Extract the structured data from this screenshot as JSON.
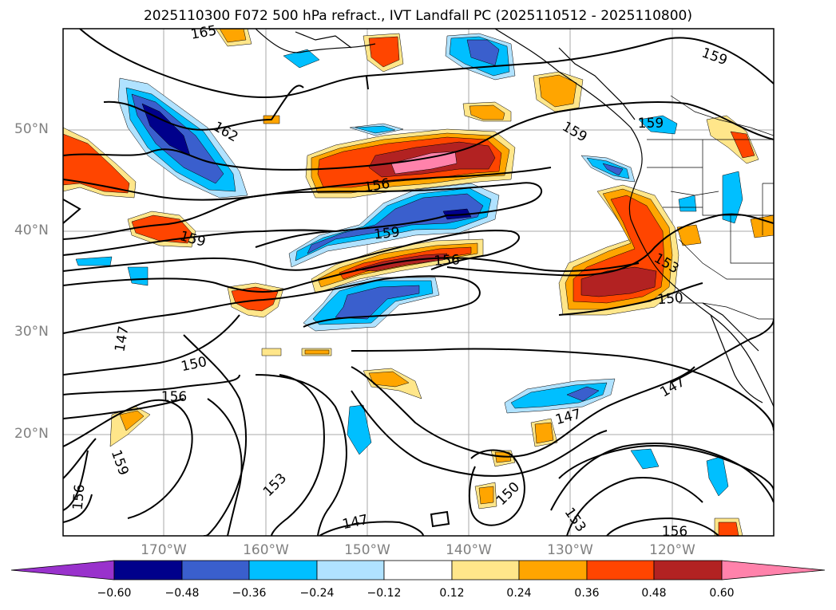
{
  "title": "2025110300 F072 500 hPa refract., IVT Landfall PC (2025110512 - 2025110800)",
  "lat_labels": [
    "50°N",
    "40°N",
    "30°N",
    "20°N"
  ],
  "lon_labels": [
    "170°W",
    "160°W",
    "150°W",
    "140°W",
    "130°W",
    "120°W"
  ],
  "contour_labels": [
    "165",
    "159",
    "162",
    "159",
    "159",
    "156",
    "159",
    "159",
    "156",
    "153",
    "150",
    "147",
    "150",
    "156",
    "147",
    "147",
    "153",
    "150",
    "147",
    "153",
    "159",
    "156",
    "156"
  ],
  "colorbar": {
    "ticks": [
      "−0.60",
      "−0.48",
      "−0.36",
      "−0.24",
      "−0.12",
      "0.12",
      "0.24",
      "0.36",
      "0.48",
      "0.60"
    ],
    "colors": [
      "#9932cc",
      "#00008b",
      "#3a5fcd",
      "#00bfff",
      "#b0e2ff",
      "#ffffff",
      "#ffe68a",
      "#ffa500",
      "#ff4500",
      "#b22222",
      "#ff82ab"
    ]
  }
}
